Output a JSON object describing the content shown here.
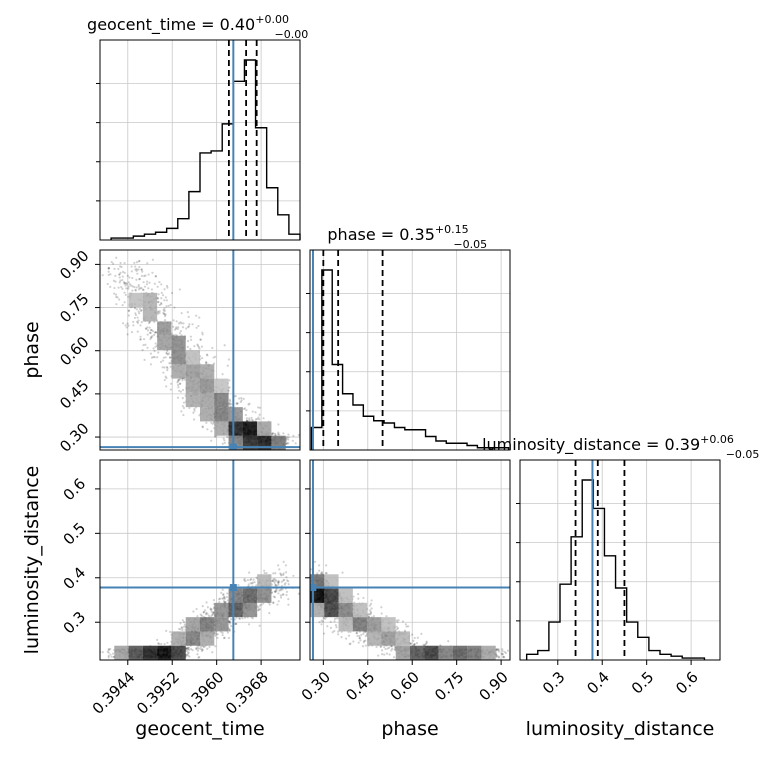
{
  "chart_data": {
    "type": "corner",
    "params": [
      "geocent_time",
      "phase",
      "luminosity_distance"
    ],
    "truths": {
      "geocent_time": 0.3963,
      "phase": 0.265,
      "luminosity_distance": 0.378
    },
    "marginals": [
      {
        "param": "geocent_time",
        "title_label": "geocent_time = 0.40",
        "title_plus": "+0.00",
        "title_minus": "−0.00",
        "xlim": [
          0.3939,
          0.3975
        ],
        "ticks": [
          0.3944,
          0.3952,
          0.396,
          0.3968
        ],
        "tick_labels": [
          "0.3944",
          "0.3952",
          "0.3960",
          "0.3968"
        ],
        "axis_label": "geocent_time",
        "bins": [
          0.3941,
          0.3975
        ],
        "counts": [
          1,
          1,
          2,
          3,
          4,
          6,
          11,
          25,
          45,
          46,
          60,
          82,
          93,
          58,
          27,
          13,
          3
        ],
        "quantiles": [
          0.39622,
          0.39653,
          0.39672
        ]
      },
      {
        "param": "phase",
        "title_label": "phase = 0.35",
        "title_plus": "+0.15",
        "title_minus": "−0.05",
        "xlim": [
          0.255,
          0.93
        ],
        "ticks": [
          0.3,
          0.45,
          0.6,
          0.75,
          0.9
        ],
        "tick_labels": [
          "0.30",
          "0.45",
          "0.60",
          "0.75",
          "0.90"
        ],
        "axis_label": "phase",
        "bins": [
          0.26,
          0.925
        ],
        "counts": [
          10,
          80,
          38,
          25,
          20,
          15,
          13,
          12,
          10,
          9,
          9,
          6,
          4,
          3,
          3,
          2,
          1,
          1,
          1
        ],
        "quantiles": [
          0.3,
          0.35,
          0.5
        ]
      },
      {
        "param": "luminosity_distance",
        "title_label": "luminosity_distance = 0.39",
        "title_plus": "+0.06",
        "title_minus": "−0.05",
        "xlim": [
          0.215,
          0.665
        ],
        "ticks": [
          0.3,
          0.4,
          0.5,
          0.6
        ],
        "tick_labels": [
          "0.3",
          "0.4",
          "0.5",
          "0.6"
        ],
        "axis_label": "luminosity_distance",
        "bins": [
          0.23,
          0.63
        ],
        "counts": [
          3,
          5,
          20,
          40,
          65,
          95,
          80,
          55,
          38,
          20,
          12,
          5,
          3,
          2,
          1,
          1
        ],
        "quantiles": [
          0.34,
          0.39,
          0.45
        ]
      }
    ],
    "pair_panels": [
      {
        "x_param": "geocent_time",
        "y_param": "phase",
        "ylim": [
          0.255,
          0.95
        ],
        "yticks": [
          0.3,
          0.45,
          0.6,
          0.75,
          0.9
        ],
        "ytick_labels": [
          "0.30",
          "0.45",
          "0.60",
          "0.75",
          "0.90"
        ],
        "y_axis_label": "phase"
      },
      {
        "x_param": "geocent_time",
        "y_param": "luminosity_distance",
        "ylim": [
          0.215,
          0.665
        ],
        "yticks": [
          0.3,
          0.4,
          0.5,
          0.6
        ],
        "ytick_labels": [
          "0.3",
          "0.4",
          "0.5",
          "0.6"
        ],
        "y_axis_label": "luminosity_distance"
      },
      {
        "x_param": "phase",
        "y_param": "luminosity_distance",
        "ylim": [
          0.215,
          0.665
        ],
        "yticks": [
          0.3,
          0.4,
          0.5,
          0.6
        ],
        "ytick_labels": [
          "0.3",
          "0.4",
          "0.5",
          "0.6"
        ],
        "y_axis_label": "luminosity_distance"
      }
    ],
    "grid": true,
    "colors": {
      "truth": "#4682b4",
      "hist": "#000000",
      "grid": "#c8c8c8",
      "points": "#000000"
    }
  }
}
